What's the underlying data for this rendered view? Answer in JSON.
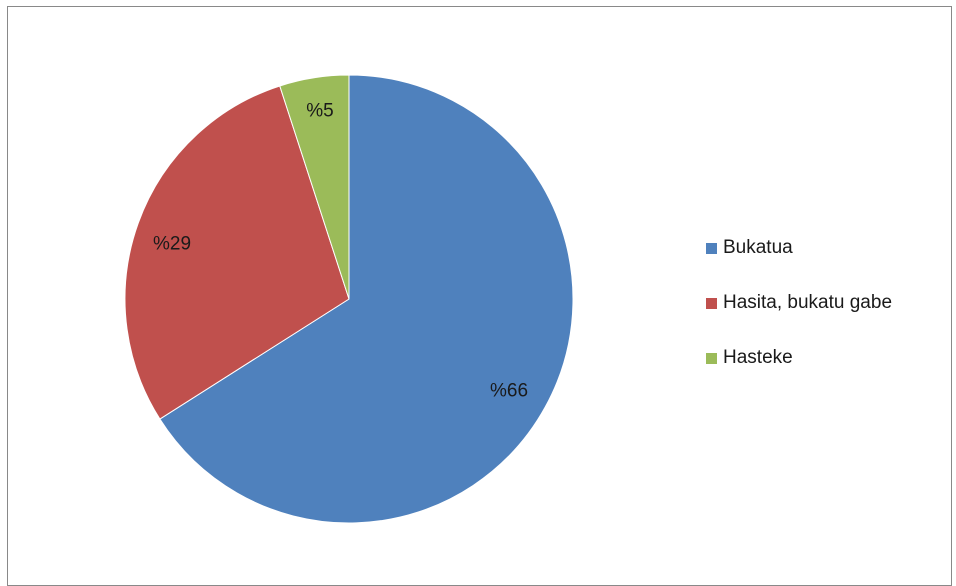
{
  "chart_data": {
    "type": "pie",
    "title": "",
    "categories": [
      "Bukatua",
      "Hasita, bukatu gabe",
      "Hasteke"
    ],
    "values": [
      66,
      29,
      5
    ],
    "labels": [
      "%66",
      "%29",
      "%5"
    ],
    "colors": [
      "#4f81bd",
      "#c0504d",
      "#9bbb59"
    ],
    "legend": {
      "position": "right",
      "entries": [
        "Bukatua",
        "Hasita, bukatu gabe",
        "Hasteke"
      ]
    }
  }
}
